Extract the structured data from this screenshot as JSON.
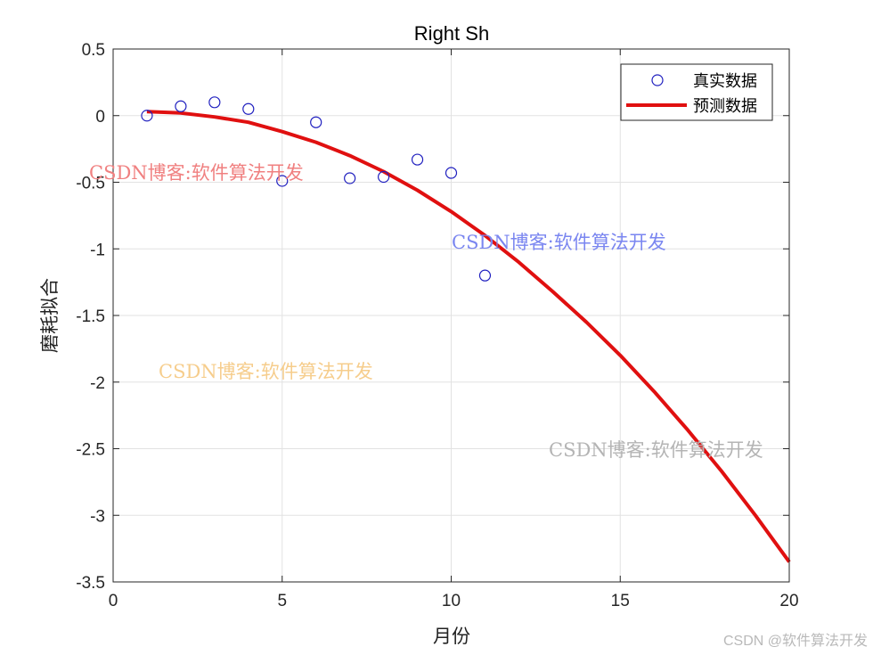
{
  "chart_data": {
    "type": "scatter",
    "title": "Right Sh",
    "xlabel": "月份",
    "ylabel": "磨耗拟合",
    "xlim": [
      0,
      20
    ],
    "ylim": [
      -3.5,
      0.5
    ],
    "xticks": [
      0,
      5,
      10,
      15,
      20
    ],
    "yticks": [
      0.5,
      0,
      -0.5,
      -1,
      -1.5,
      -2,
      -2.5,
      -3,
      -3.5
    ],
    "grid": true,
    "legend_position": "top-right",
    "series": [
      {
        "name": "真实数据",
        "kind": "scatter",
        "marker": "circle-open",
        "color": "#1f1fbf",
        "x": [
          1,
          2,
          3,
          4,
          5,
          6,
          7,
          8,
          9,
          10,
          11
        ],
        "y": [
          0.0,
          0.07,
          0.1,
          0.05,
          -0.49,
          -0.05,
          -0.47,
          -0.46,
          -0.33,
          -0.43,
          -1.2
        ]
      },
      {
        "name": "预测数据",
        "kind": "line",
        "color": "#e01010",
        "x": [
          1,
          2,
          3,
          4,
          5,
          6,
          7,
          8,
          9,
          10,
          11,
          12,
          13,
          14,
          15,
          16,
          17,
          18,
          19,
          20
        ],
        "y": [
          0.03,
          0.02,
          -0.01,
          -0.05,
          -0.12,
          -0.2,
          -0.3,
          -0.42,
          -0.56,
          -0.72,
          -0.9,
          -1.1,
          -1.32,
          -1.55,
          -1.8,
          -2.07,
          -2.36,
          -2.67,
          -3.0,
          -3.35
        ]
      }
    ]
  },
  "watermarks": [
    {
      "text": "CSDN博客:软件算法开发",
      "color": "#f08080"
    },
    {
      "text": "CSDN博客:软件算法开发",
      "color": "#7a86f0"
    },
    {
      "text": "CSDN博客:软件算法开发",
      "color": "#f6cd8c"
    },
    {
      "text": "CSDN博客:软件算法开发",
      "color": "#b4b4b4"
    }
  ],
  "corner_watermark": "CSDN @软件算法开发"
}
